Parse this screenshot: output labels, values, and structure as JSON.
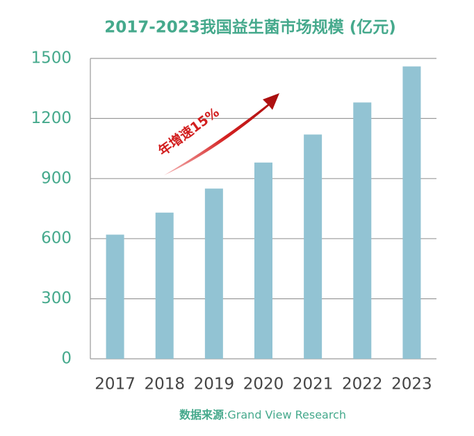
{
  "chart_data": {
    "type": "bar",
    "title": "2017-2023我国益生菌市场规模 (亿元)",
    "categories": [
      "2017",
      "2018",
      "2019",
      "2020",
      "2021",
      "2022",
      "2023"
    ],
    "values": [
      620,
      730,
      850,
      980,
      1120,
      1280,
      1460
    ],
    "color": "#92c3d3",
    "ylim": [
      0,
      1500
    ],
    "yticks": [
      0,
      300,
      600,
      900,
      1200,
      1500
    ],
    "grid": true,
    "annotation": "年增速15%",
    "source_label": "数据来源",
    "source": ":Grand View Research"
  }
}
